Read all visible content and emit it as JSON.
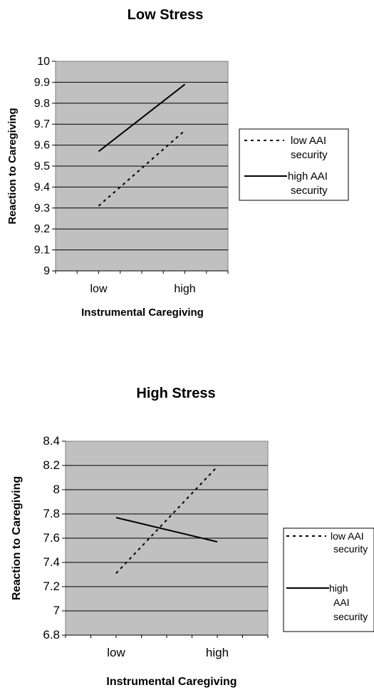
{
  "chart_data": [
    {
      "type": "line",
      "title": "Low Stress",
      "xlabel": "Instrumental Caregiving",
      "ylabel": "Reaction to Caregiving",
      "categories": [
        "low",
        "high"
      ],
      "y_ticks": [
        "10",
        "9.9",
        "9.8",
        "9.7",
        "9.6",
        "9.5",
        "9.4",
        "9.3",
        "9.2",
        "9.1",
        "9"
      ],
      "ylim": [
        9,
        10
      ],
      "grid": true,
      "legend_position": "right",
      "series": [
        {
          "name": "low AAI security",
          "style": "dashed",
          "values": [
            9.31,
            9.67
          ],
          "legend_lines": [
            "low AAI",
            "security"
          ]
        },
        {
          "name": "high AAI security",
          "style": "solid",
          "values": [
            9.57,
            9.89
          ],
          "legend_lines": [
            "high AAI",
            "security"
          ]
        }
      ]
    },
    {
      "type": "line",
      "title": "High Stress",
      "xlabel": "Instrumental Caregiving",
      "ylabel": "Reaction to Caregiving",
      "categories": [
        "low",
        "high"
      ],
      "y_ticks": [
        "8.4",
        "8.2",
        "8",
        "7.8",
        "7.6",
        "7.4",
        "7.2",
        "7",
        "6.8"
      ],
      "ylim": [
        6.8,
        8.4
      ],
      "grid": true,
      "legend_position": "right",
      "series": [
        {
          "name": "low AAI security",
          "style": "dashed",
          "values": [
            7.31,
            8.19
          ],
          "legend_lines": [
            "low AAI",
            "security"
          ]
        },
        {
          "name": "high AAI security",
          "style": "solid",
          "values": [
            7.77,
            7.57
          ],
          "legend_lines": [
            "high",
            "AAI",
            "security"
          ]
        }
      ]
    }
  ]
}
